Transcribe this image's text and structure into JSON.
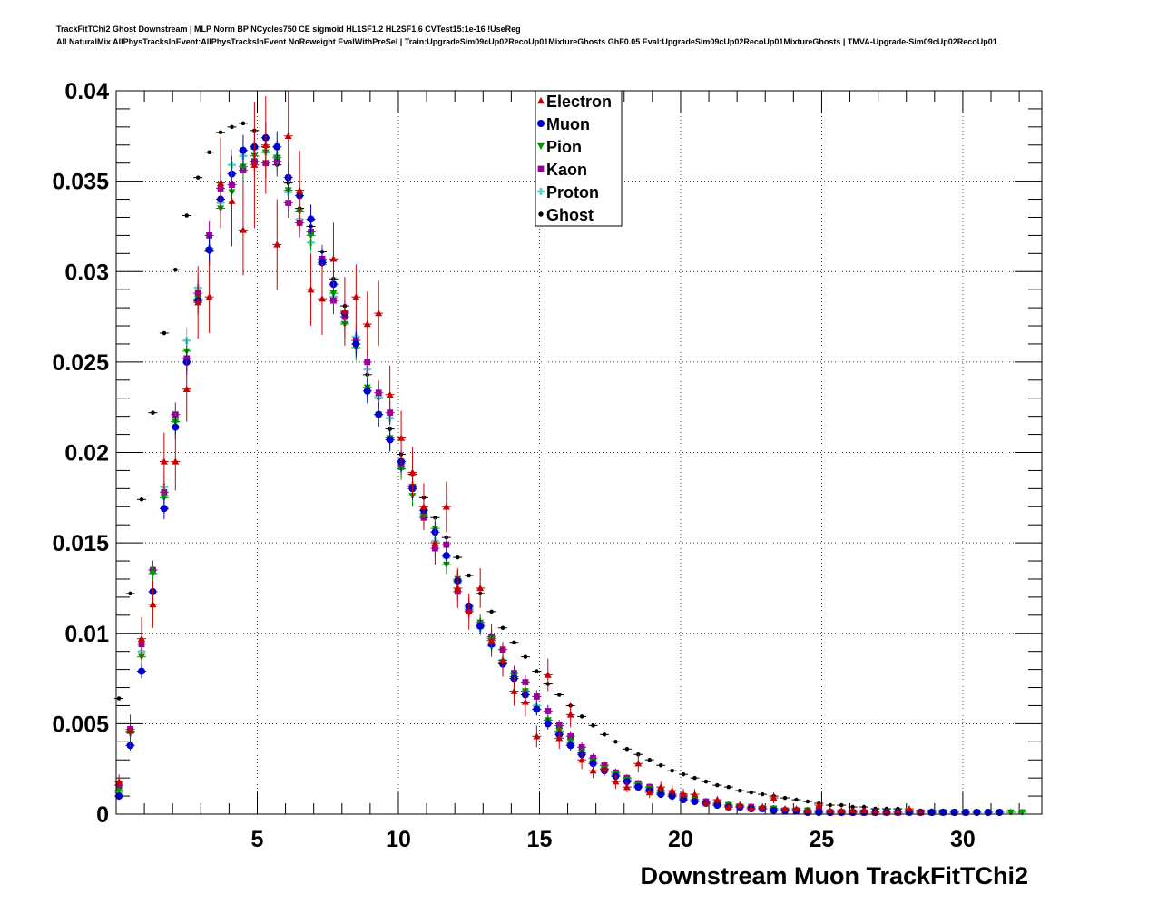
{
  "header": {
    "line1": "TrackFitTChi2 Ghost Downstream | MLP Norm BP NCycles750 CE sigmoid HL1SF1.2 HL2SF1.6 CVTest15:1e-16 !UseReg",
    "line2": "All NaturalMix AllPhysTracksInEvent:AllPhysTracksInEvent NoReweight EvalWithPreSel | Train:UpgradeSim09cUp02RecoUp01MixtureGhosts GhF0.05 Eval:UpgradeSim09cUp02RecoUp01MixtureGhosts | TMVA-Upgrade-Sim09cUp02RecoUp01"
  },
  "chart_data": {
    "type": "scatter",
    "title": "TrackFitTChi2 Ghost Downstream",
    "xlabel": "Downstream Muon TrackFitTChi2",
    "ylabel": "",
    "xlim": [
      0,
      32.8
    ],
    "ylim": [
      0,
      0.04
    ],
    "grid": true,
    "legend_position": "top-center",
    "x_ticks": [
      5,
      10,
      15,
      20,
      25,
      30
    ],
    "x_tick_labels": [
      "5",
      "10",
      "15",
      "20",
      "25",
      "30"
    ],
    "y_ticks": [
      0,
      0.005,
      0.01,
      0.015,
      0.02,
      0.025,
      0.03,
      0.035,
      0.04
    ],
    "y_tick_labels": [
      "0",
      "0.005",
      "0.01",
      "0.015",
      "0.02",
      "0.025",
      "0.03",
      "0.035",
      "0.04"
    ],
    "series": [
      {
        "name": "Electron",
        "color": "#cc0000",
        "marker": "triangle-up",
        "x": [
          0.1,
          0.5,
          0.9,
          1.3,
          1.7,
          2.1,
          2.5,
          2.9,
          3.3,
          3.7,
          4.1,
          4.5,
          4.9,
          5.3,
          5.7,
          6.1,
          6.5,
          6.9,
          7.3,
          7.7,
          8.1,
          8.5,
          8.9,
          9.3,
          9.7,
          10.1,
          10.5,
          10.9,
          11.3,
          11.7,
          12.1,
          12.5,
          12.9,
          13.3,
          13.7,
          14.1,
          14.5,
          14.9,
          15.3,
          15.7,
          16.1,
          16.5,
          16.9,
          17.3,
          17.7,
          18.1,
          18.5,
          18.9,
          19.3,
          19.7,
          20.1,
          20.5,
          20.9,
          21.3,
          21.7,
          22.1,
          22.5,
          22.9,
          23.3,
          23.7,
          24.1,
          24.5,
          24.9,
          25.3,
          25.7,
          26.1,
          26.5,
          26.9,
          27.3,
          27.7,
          28.1,
          28.5
        ],
        "y": [
          0.0018,
          0.0046,
          0.0097,
          0.0116,
          0.0195,
          0.0195,
          0.0235,
          0.0283,
          0.0286,
          0.0349,
          0.0339,
          0.0323,
          0.0359,
          0.037,
          0.0315,
          0.0375,
          0.0345,
          0.029,
          0.0285,
          0.0307,
          0.0278,
          0.0286,
          0.0271,
          0.0277,
          0.0232,
          0.0208,
          0.0189,
          0.017,
          0.015,
          0.017,
          0.0125,
          0.0112,
          0.0125,
          0.0096,
          0.0085,
          0.0068,
          0.0062,
          0.0043,
          0.0077,
          0.0042,
          0.0055,
          0.003,
          0.0024,
          0.0025,
          0.0018,
          0.0015,
          0.0028,
          0.0012,
          0.0015,
          0.0013,
          0.0011,
          0.0011,
          0.0006,
          0.0008,
          0.0004,
          0.0005,
          0.0003,
          0.0004,
          0.0009,
          0.0003,
          0.0003,
          0.0002,
          0.0005,
          0.0002,
          0.0002,
          0.0002,
          0.0002,
          0.0001,
          0.0001,
          0.0001,
          0.0003,
          0.0001
        ],
        "err": [
          0.0004,
          0.0009,
          0.0012,
          0.0013,
          0.0016,
          0.0016,
          0.0018,
          0.002,
          0.002,
          0.0025,
          0.0025,
          0.0025,
          0.0035,
          0.0027,
          0.0025,
          0.0025,
          0.0022,
          0.002,
          0.002,
          0.002,
          0.0019,
          0.0018,
          0.0018,
          0.0018,
          0.0016,
          0.0015,
          0.0014,
          0.0013,
          0.0012,
          0.0014,
          0.0011,
          0.001,
          0.0011,
          0.0009,
          0.0009,
          0.0008,
          0.0008,
          0.0006,
          0.0009,
          0.0006,
          0.0007,
          0.0005,
          0.0004,
          0.0004,
          0.0004,
          0.0003,
          0.0005,
          0.0003,
          0.0003,
          0.0003,
          0.0003,
          0.0003,
          0.0002,
          0.0002,
          0.0002,
          0.0002,
          0.0001,
          0.0002,
          0.0003,
          0.0001,
          0.0001,
          0.0001,
          0.0002,
          0.0001,
          0.0001,
          0.0001,
          0.0001,
          0.0001,
          0.0001,
          0.0001,
          0.0001,
          0.0001
        ]
      },
      {
        "name": "Muon",
        "color": "#0000cc",
        "marker": "circle",
        "x": [
          0.1,
          0.5,
          0.9,
          1.3,
          1.7,
          2.1,
          2.5,
          2.9,
          3.3,
          3.7,
          4.1,
          4.5,
          4.9,
          5.3,
          5.7,
          6.1,
          6.5,
          6.9,
          7.3,
          7.7,
          8.1,
          8.5,
          8.9,
          9.3,
          9.7,
          10.1,
          10.5,
          10.9,
          11.3,
          11.7,
          12.1,
          12.5,
          12.9,
          13.3,
          13.7,
          14.1,
          14.5,
          14.9,
          15.3,
          15.7,
          16.1,
          16.5,
          16.9,
          17.3,
          17.7,
          18.1,
          18.5,
          18.9,
          19.3,
          19.7,
          20.1,
          20.5,
          20.9,
          21.3,
          21.7,
          22.1,
          22.5,
          22.9,
          23.3,
          23.7,
          24.1,
          24.5,
          24.9,
          25.3,
          25.7,
          26.1,
          26.5,
          26.9,
          27.3,
          27.7,
          28.1,
          28.5,
          28.9,
          29.3,
          29.7,
          30.1,
          30.5,
          30.9,
          31.3
        ],
        "y": [
          0.001,
          0.0038,
          0.0079,
          0.0123,
          0.0169,
          0.0214,
          0.025,
          0.0284,
          0.0312,
          0.034,
          0.0354,
          0.0367,
          0.0369,
          0.0374,
          0.0369,
          0.0352,
          0.0342,
          0.0329,
          0.0305,
          0.0293,
          0.0277,
          0.026,
          0.0234,
          0.0221,
          0.0207,
          0.0195,
          0.018,
          0.0168,
          0.0156,
          0.0143,
          0.0129,
          0.0115,
          0.0104,
          0.0094,
          0.0083,
          0.0075,
          0.0066,
          0.0058,
          0.005,
          0.0044,
          0.0038,
          0.0033,
          0.0028,
          0.0024,
          0.0021,
          0.0018,
          0.0015,
          0.0013,
          0.0011,
          0.001,
          0.0008,
          0.0007,
          0.0006,
          0.0005,
          0.0004,
          0.0004,
          0.0003,
          0.0003,
          0.0002,
          0.0002,
          0.0002,
          0.0001,
          0.0001,
          0.0001,
          0.0001,
          0.0001,
          0.0001,
          0.0001,
          0.0001,
          0.0001,
          0.0001,
          0.0001,
          0.0001,
          0.0001,
          0.0001,
          0.0001,
          0.0001,
          0.0001,
          0.0001
        ]
      },
      {
        "name": "Pion",
        "color": "#009900",
        "marker": "triangle-down",
        "x": [
          0.1,
          0.5,
          0.9,
          1.3,
          1.7,
          2.1,
          2.5,
          2.9,
          3.3,
          3.7,
          4.1,
          4.5,
          4.9,
          5.3,
          5.7,
          6.1,
          6.5,
          6.9,
          7.3,
          7.7,
          8.1,
          8.5,
          8.9,
          9.3,
          9.7,
          10.1,
          10.5,
          10.9,
          11.3,
          11.7,
          12.1,
          12.5,
          12.9,
          13.3,
          13.7,
          14.1,
          14.5,
          14.9,
          15.3,
          15.7,
          16.1,
          16.5,
          16.9,
          17.3,
          17.7,
          18.1,
          18.5,
          18.9,
          19.3,
          19.7,
          20.1,
          20.5,
          20.9,
          21.3,
          21.7,
          22.1,
          22.5,
          22.9,
          23.3,
          23.7,
          24.1,
          24.5,
          24.9,
          25.3,
          25.7,
          26.1,
          26.5,
          26.9,
          27.3,
          27.7,
          28.1,
          28.5,
          28.9,
          29.3,
          29.7,
          30.1,
          30.5,
          30.9,
          31.3,
          31.7,
          32.1
        ],
        "y": [
          0.0013,
          0.0045,
          0.0087,
          0.0133,
          0.0175,
          0.0217,
          0.0256,
          0.0285,
          0.0311,
          0.0335,
          0.0344,
          0.0358,
          0.0364,
          0.0366,
          0.0363,
          0.0345,
          0.0333,
          0.032,
          0.0304,
          0.0288,
          0.0271,
          0.0258,
          0.0236,
          0.0221,
          0.0208,
          0.0191,
          0.0176,
          0.0165,
          0.0158,
          0.0138,
          0.013,
          0.0114,
          0.0106,
          0.0097,
          0.0084,
          0.0076,
          0.0068,
          0.0058,
          0.0052,
          0.0046,
          0.004,
          0.0034,
          0.0029,
          0.0025,
          0.0022,
          0.0019,
          0.0016,
          0.0014,
          0.0012,
          0.001,
          0.0009,
          0.0008,
          0.0006,
          0.0005,
          0.0005,
          0.0004,
          0.0003,
          0.0003,
          0.0003,
          0.0002,
          0.0002,
          0.0002,
          0.0001,
          0.0001,
          0.0001,
          0.0001,
          0.0001,
          0.0001,
          0.0001,
          0.0001,
          0.0001,
          0.0001,
          0.0001,
          0.0001,
          0.0001,
          0.0001,
          0.0001,
          0.0001,
          0.0001,
          0.0001,
          0.0001
        ]
      },
      {
        "name": "Kaon",
        "color": "#990099",
        "marker": "square",
        "x": [
          0.1,
          0.5,
          0.9,
          1.3,
          1.7,
          2.1,
          2.5,
          2.9,
          3.3,
          3.7,
          4.1,
          4.5,
          4.9,
          5.3,
          5.7,
          6.1,
          6.5,
          6.9,
          7.3,
          7.7,
          8.1,
          8.5,
          8.9,
          9.3,
          9.7,
          10.1,
          10.5,
          10.9,
          11.3,
          11.7,
          12.1,
          12.5,
          12.9,
          13.3,
          13.7,
          14.1,
          14.5,
          14.9,
          15.3,
          15.7,
          16.1,
          16.5,
          16.9,
          17.3,
          17.7,
          18.1,
          18.5,
          18.9,
          19.3,
          19.7,
          20.1,
          20.5,
          20.9,
          21.3,
          21.7,
          22.1,
          22.5,
          22.9,
          23.3,
          23.7,
          24.1,
          24.5,
          24.9,
          25.3,
          25.7,
          26.1,
          26.5,
          26.9,
          27.3,
          27.7,
          28.1,
          28.5,
          28.9,
          29.3,
          29.7,
          30.1
        ],
        "y": [
          0.0016,
          0.0047,
          0.0094,
          0.0135,
          0.0178,
          0.0221,
          0.0252,
          0.0288,
          0.032,
          0.0346,
          0.0348,
          0.0356,
          0.0361,
          0.036,
          0.0361,
          0.0338,
          0.0327,
          0.0322,
          0.0307,
          0.0284,
          0.0275,
          0.0262,
          0.025,
          0.0233,
          0.0222,
          0.0192,
          0.0181,
          0.0164,
          0.0147,
          0.0149,
          0.0123,
          0.0113,
          0.0105,
          0.0098,
          0.0091,
          0.0078,
          0.0073,
          0.0065,
          0.0057,
          0.0049,
          0.0043,
          0.0037,
          0.0031,
          0.0027,
          0.0023,
          0.002,
          0.0017,
          0.0015,
          0.0013,
          0.0011,
          0.001,
          0.0008,
          0.0007,
          0.0006,
          0.0005,
          0.0004,
          0.0004,
          0.0003,
          0.0003,
          0.0002,
          0.0002,
          0.0002,
          0.0002,
          0.0001,
          0.0001,
          0.0001,
          0.0001,
          0.0001,
          0.0001,
          0.0001,
          0.0001,
          0.0001,
          0.0001,
          0.0001,
          0.0001,
          0.0001
        ]
      },
      {
        "name": "Proton",
        "color": "#66cccc",
        "marker": "cross",
        "x": [
          0.1,
          0.5,
          0.9,
          1.3,
          1.7,
          2.1,
          2.5,
          2.9,
          3.3,
          3.7,
          4.1,
          4.5,
          4.9,
          5.3,
          5.7,
          6.1,
          6.5,
          6.9,
          7.3,
          7.7,
          8.1,
          8.5,
          8.9,
          9.3,
          9.7,
          10.1,
          10.5,
          10.9,
          11.3,
          11.7,
          12.1,
          12.5,
          12.9,
          13.3,
          13.7,
          14.1,
          14.5,
          14.9,
          15.3,
          15.7,
          16.1,
          16.5,
          16.9,
          17.3,
          17.7,
          18.1,
          18.5,
          18.9,
          19.3,
          19.7,
          20.1,
          20.5,
          20.9,
          21.3,
          21.7,
          22.1,
          22.5,
          22.9,
          23.3,
          23.7,
          24.1,
          24.5,
          24.9,
          25.3,
          25.7,
          26.1,
          26.5,
          26.9,
          27.3,
          27.7,
          28.1,
          28.5,
          28.9,
          29.3,
          29.7,
          30.1
        ],
        "y": [
          0.0012,
          0.0045,
          0.009,
          0.0135,
          0.0181,
          0.0217,
          0.0262,
          0.0291,
          0.0313,
          0.0338,
          0.0359,
          0.0364,
          0.0368,
          0.0366,
          0.0364,
          0.0344,
          0.0329,
          0.0316,
          0.0306,
          0.0286,
          0.0272,
          0.0264,
          0.0246,
          0.0231,
          0.0219,
          0.0194,
          0.0182,
          0.0166,
          0.0151,
          0.0142,
          0.0128,
          0.0112,
          0.0103,
          0.0093,
          0.0085,
          0.0078,
          0.0068,
          0.006,
          0.0052,
          0.0045,
          0.0039,
          0.0034,
          0.0029,
          0.0025,
          0.0021,
          0.0018,
          0.0015,
          0.0013,
          0.0011,
          0.001,
          0.0009,
          0.0008,
          0.0006,
          0.0005,
          0.0005,
          0.0004,
          0.0003,
          0.0003,
          0.0003,
          0.0002,
          0.0002,
          0.0002,
          0.0001,
          0.0001,
          0.0001,
          0.0001,
          0.0001,
          0.0001,
          0.0001,
          0.0001,
          0.0001,
          0.0001,
          0.0001,
          0.0001,
          0.0001,
          0.0001
        ]
      },
      {
        "name": "Ghost",
        "color": "#000000",
        "marker": "dot",
        "x": [
          0.1,
          0.5,
          0.9,
          1.3,
          1.7,
          2.1,
          2.5,
          2.9,
          3.3,
          3.7,
          4.1,
          4.5,
          4.9,
          5.3,
          5.7,
          6.1,
          6.5,
          6.9,
          7.3,
          7.7,
          8.1,
          8.5,
          8.9,
          9.3,
          9.7,
          10.1,
          10.5,
          10.9,
          11.3,
          11.7,
          12.1,
          12.5,
          12.9,
          13.3,
          13.7,
          14.1,
          14.5,
          14.9,
          15.3,
          15.7,
          16.1,
          16.5,
          16.9,
          17.3,
          17.7,
          18.1,
          18.5,
          18.9,
          19.3,
          19.7,
          20.1,
          20.5,
          20.9,
          21.3,
          21.7,
          22.1,
          22.5,
          22.9,
          23.3,
          23.7,
          24.1,
          24.5,
          24.9,
          25.3,
          25.7,
          26.1,
          26.5,
          26.9,
          27.3,
          27.7,
          28.1,
          28.5,
          28.9,
          29.3,
          29.7,
          30.1,
          30.5,
          30.9,
          31.3,
          31.7
        ],
        "y": [
          0.0064,
          0.0122,
          0.0174,
          0.0222,
          0.0266,
          0.0301,
          0.0331,
          0.0352,
          0.0366,
          0.0377,
          0.038,
          0.0382,
          0.0378,
          0.0369,
          0.0359,
          0.0349,
          0.0335,
          0.0325,
          0.0311,
          0.0296,
          0.0281,
          0.0262,
          0.0243,
          0.023,
          0.0213,
          0.0199,
          0.0188,
          0.0175,
          0.0164,
          0.0153,
          0.0142,
          0.0132,
          0.0122,
          0.0112,
          0.0103,
          0.0095,
          0.0087,
          0.0079,
          0.0072,
          0.0066,
          0.006,
          0.0054,
          0.0049,
          0.0044,
          0.004,
          0.0036,
          0.0033,
          0.003,
          0.0027,
          0.0024,
          0.0022,
          0.002,
          0.0018,
          0.0016,
          0.0015,
          0.0013,
          0.0012,
          0.0011,
          0.001,
          0.0009,
          0.0008,
          0.0007,
          0.0006,
          0.0005,
          0.0005,
          0.0004,
          0.0004,
          0.0003,
          0.0003,
          0.0003,
          0.0002,
          0.0002,
          0.0002,
          0.0002,
          0.0001,
          0.0001,
          0.0001,
          0.0001,
          0.0001,
          0.0001
        ]
      }
    ]
  }
}
